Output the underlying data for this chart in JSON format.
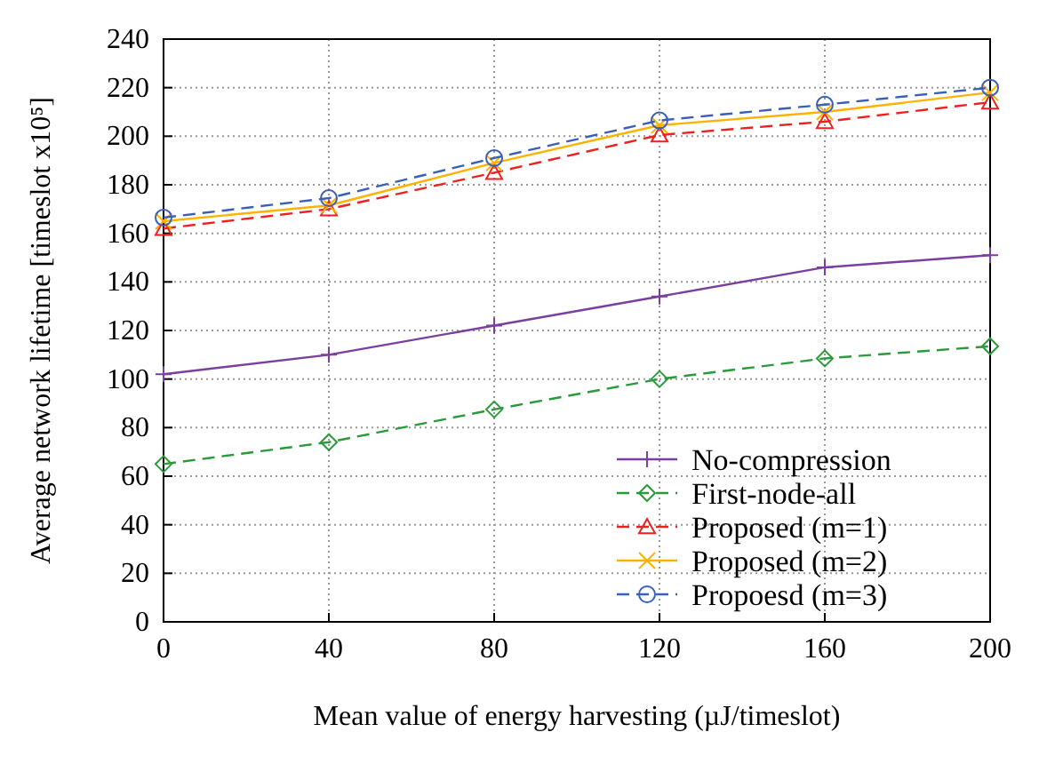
{
  "chart_data": {
    "type": "line",
    "xlabel": "Mean value of energy harvesting (µJ/timeslot)",
    "ylabel": "Average network lifetime [timeslot x10⁵]",
    "x": [
      0,
      40,
      80,
      120,
      160,
      200
    ],
    "xlim": [
      0,
      200
    ],
    "xticks": [
      0,
      40,
      80,
      120,
      160,
      200
    ],
    "ylim": [
      0,
      240
    ],
    "yticks": [
      0,
      20,
      40,
      60,
      80,
      100,
      120,
      140,
      160,
      180,
      200,
      220,
      240
    ],
    "grid": true,
    "legend": "bottom right",
    "series": [
      {
        "name": "No-compression",
        "color": "#7b3fa0",
        "marker": "plus",
        "line_style": "solid",
        "values": [
          102,
          110,
          122,
          134,
          146,
          151
        ]
      },
      {
        "name": "First-node-all",
        "color": "#2a9a3a",
        "marker": "diamond",
        "line_style": "dashed",
        "values": [
          65,
          74,
          87.5,
          100,
          108.5,
          113.5
        ]
      },
      {
        "name": "Proposed (m=1)",
        "color": "#f02020",
        "marker": "triangle",
        "line_style": "dashed",
        "values": [
          162,
          170,
          185,
          200.5,
          206,
          214
        ]
      },
      {
        "name": "Proposed (m=2)",
        "color": "#ffb300",
        "marker": "cross",
        "line_style": "solid",
        "values": [
          165,
          171.5,
          189,
          204.5,
          210,
          218
        ]
      },
      {
        "name": "Propoesd (m=3)",
        "color": "#3a5fb8",
        "marker": "circle",
        "line_style": "dashed",
        "values": [
          166.5,
          174.5,
          191,
          206.5,
          213,
          220
        ]
      }
    ]
  }
}
